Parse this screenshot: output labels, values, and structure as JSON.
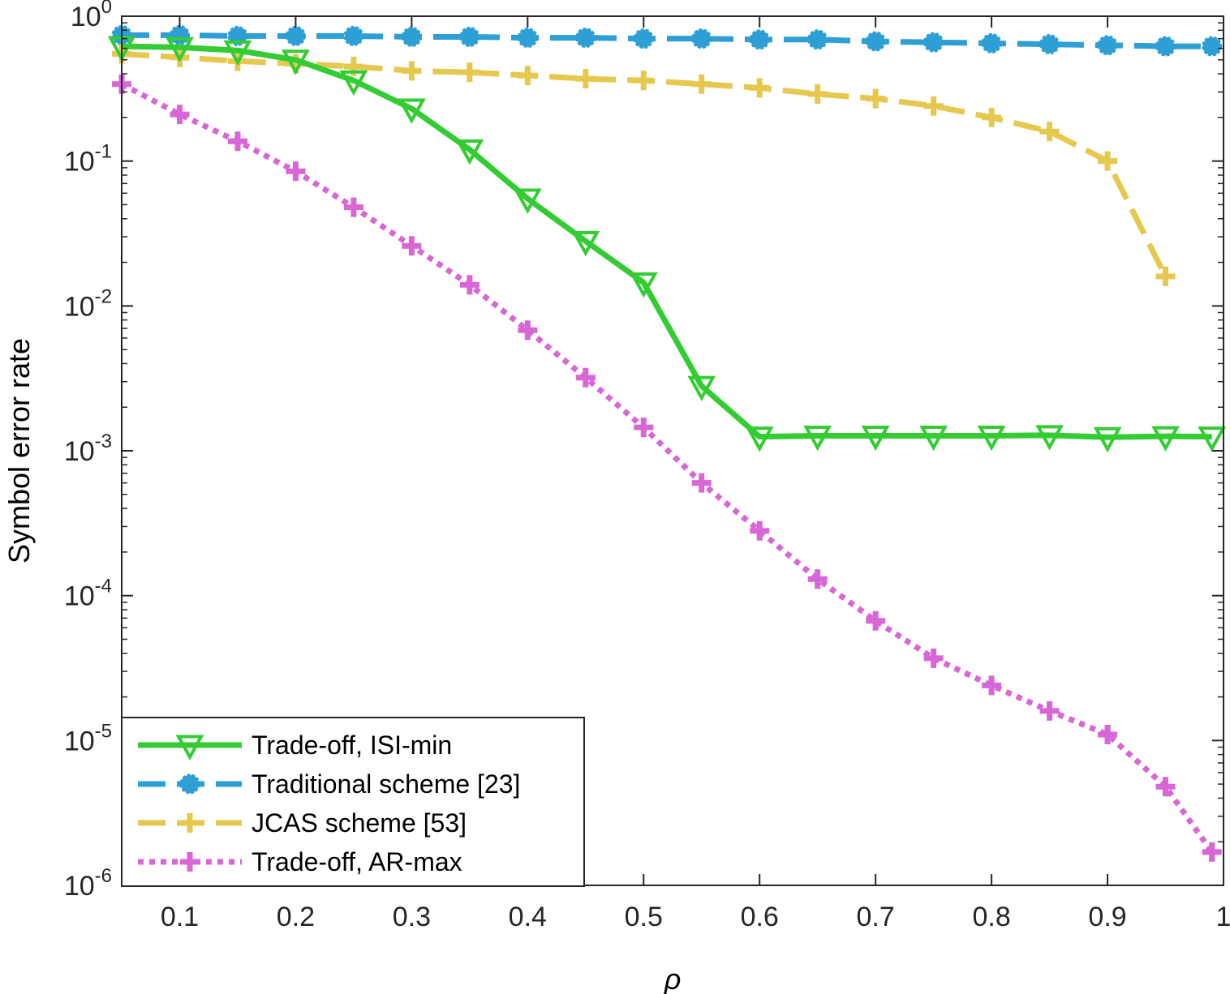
{
  "chart_data": {
    "type": "line",
    "title": "",
    "xlabel": "ρ",
    "ylabel": "Symbol error rate",
    "xlim": [
      0.05,
      1.0
    ],
    "ylim": [
      1e-06,
      1
    ],
    "yscale": "log",
    "x_ticks": [
      "0.1",
      "0.2",
      "0.3",
      "0.4",
      "0.5",
      "0.6",
      "0.7",
      "0.8",
      "0.9",
      "1"
    ],
    "x_tick_values": [
      0.1,
      0.2,
      0.3,
      0.4,
      0.5,
      0.6,
      0.7,
      0.8,
      0.9,
      1.0
    ],
    "y_ticks": [
      {
        "value": 1e-06,
        "base": "10",
        "exp": "-6"
      },
      {
        "value": 1e-05,
        "base": "10",
        "exp": "-5"
      },
      {
        "value": 0.0001,
        "base": "10",
        "exp": "-4"
      },
      {
        "value": 0.001,
        "base": "10",
        "exp": "-3"
      },
      {
        "value": 0.01,
        "base": "10",
        "exp": "-2"
      },
      {
        "value": 0.1,
        "base": "10",
        "exp": "-1"
      },
      {
        "value": 1,
        "base": "10",
        "exp": "0"
      }
    ],
    "grid": false,
    "legend_position": "bottom-left",
    "series": [
      {
        "name": "Trade-off, ISI-min",
        "color": "#33cc33",
        "line_style": "solid",
        "marker": "triangle-down",
        "x": [
          0.05,
          0.1,
          0.15,
          0.2,
          0.25,
          0.3,
          0.35,
          0.4,
          0.45,
          0.5,
          0.55,
          0.6,
          0.65,
          0.7,
          0.75,
          0.8,
          0.85,
          0.9,
          0.95,
          0.99
        ],
        "y": [
          0.62,
          0.61,
          0.58,
          0.5,
          0.36,
          0.23,
          0.12,
          0.055,
          0.028,
          0.0145,
          0.0028,
          0.00125,
          0.00127,
          0.00127,
          0.00127,
          0.00127,
          0.00128,
          0.00124,
          0.00126,
          0.00125
        ]
      },
      {
        "name": "Traditional scheme [23]",
        "color": "#2e9fd4",
        "line_style": "dashed",
        "marker": "circle",
        "x": [
          0.05,
          0.1,
          0.15,
          0.2,
          0.25,
          0.3,
          0.35,
          0.4,
          0.45,
          0.5,
          0.55,
          0.6,
          0.65,
          0.7,
          0.75,
          0.8,
          0.85,
          0.9,
          0.95,
          0.99
        ],
        "y": [
          0.74,
          0.74,
          0.73,
          0.73,
          0.73,
          0.72,
          0.72,
          0.71,
          0.71,
          0.7,
          0.7,
          0.69,
          0.69,
          0.67,
          0.66,
          0.65,
          0.64,
          0.63,
          0.62,
          0.62
        ]
      },
      {
        "name": "JCAS scheme [53]",
        "color": "#e6c84f",
        "line_style": "dashed",
        "marker": "plus",
        "x": [
          0.05,
          0.1,
          0.15,
          0.2,
          0.25,
          0.3,
          0.35,
          0.4,
          0.45,
          0.5,
          0.55,
          0.6,
          0.65,
          0.7,
          0.75,
          0.8,
          0.85,
          0.9,
          0.95
        ],
        "y": [
          0.55,
          0.52,
          0.49,
          0.47,
          0.45,
          0.42,
          0.41,
          0.39,
          0.37,
          0.36,
          0.34,
          0.32,
          0.29,
          0.27,
          0.24,
          0.2,
          0.16,
          0.1,
          0.016
        ]
      },
      {
        "name": "Trade-off, AR-max",
        "color": "#d966d6",
        "line_style": "dotted",
        "marker": "plus",
        "x": [
          0.05,
          0.1,
          0.15,
          0.2,
          0.25,
          0.3,
          0.35,
          0.4,
          0.45,
          0.5,
          0.55,
          0.6,
          0.65,
          0.7,
          0.75,
          0.8,
          0.85,
          0.9,
          0.95,
          0.99
        ],
        "y": [
          0.34,
          0.21,
          0.137,
          0.085,
          0.048,
          0.026,
          0.014,
          0.0068,
          0.0032,
          0.00145,
          0.0006,
          0.00028,
          0.00013,
          6.7e-05,
          3.7e-05,
          2.4e-05,
          1.6e-05,
          1.1e-05,
          4.8e-06,
          1.7e-06
        ]
      }
    ]
  }
}
